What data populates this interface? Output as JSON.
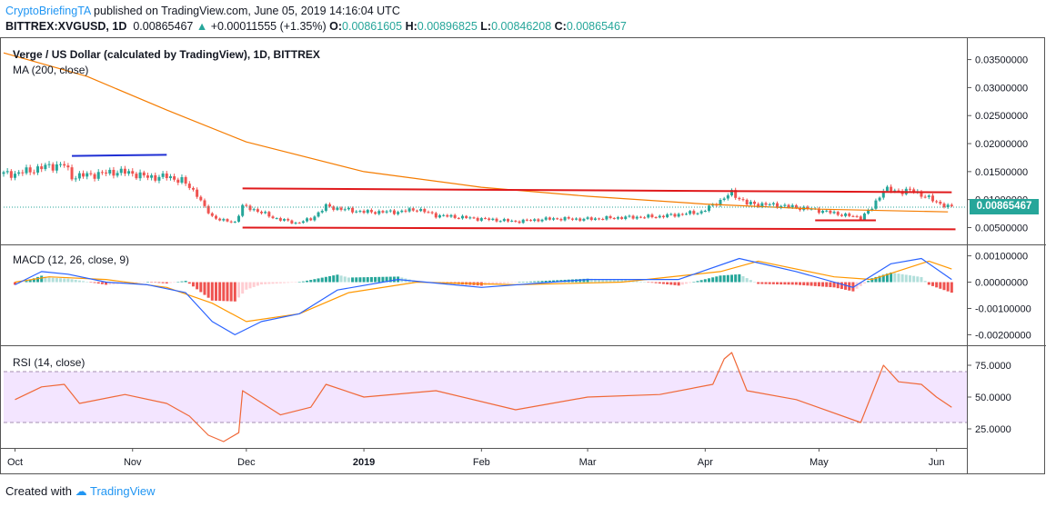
{
  "header": {
    "author": "CryptoBriefingTA",
    "published_text": "published on TradingView.com, June 05, 2019 14:16:04 UTC",
    "symbol": "BITTREX:XVGUSD, 1D",
    "last": "0.00865467",
    "change": "+0.00011555 (+1.35%)",
    "o_label": "O:",
    "o_value": "0.00861605",
    "h_label": "H:",
    "h_value": "0.00896825",
    "l_label": "L:",
    "l_value": "0.00846208",
    "c_label": "C:",
    "c_value": "0.00865467"
  },
  "footer": {
    "created_with": "Created with",
    "brand": "TradingView"
  },
  "price_tag": "0.00865467",
  "chart_data": [
    {
      "type": "candlestick",
      "title": "Verge / US Dollar (calculated by TradingView), 1D, BITTREX",
      "indicator_label": "MA (200, close)",
      "ylim": [
        0.002,
        0.0385
      ],
      "y_ticks": [
        "0.03500000",
        "0.03000000",
        "0.02500000",
        "0.02000000",
        "0.01500000",
        "0.01000000",
        "0.00500000"
      ],
      "y_tick_values": [
        0.035,
        0.03,
        0.025,
        0.02,
        0.015,
        0.01,
        0.005
      ],
      "x_ticks": [
        "Oct",
        "Nov",
        "Dec",
        "2019",
        "Feb",
        "Mar",
        "Apr",
        "May",
        "Jun"
      ],
      "x_tick_dates": [
        "2018-10-01",
        "2018-11-01",
        "2018-12-01",
        "2019-01-01",
        "2019-02-01",
        "2019-03-01",
        "2019-04-01",
        "2019-05-01",
        "2019-06-01"
      ],
      "price_close_points": [
        [
          "2018-10-01",
          0.0146
        ],
        [
          "2018-10-05",
          0.0152
        ],
        [
          "2018-10-10",
          0.016
        ],
        [
          "2018-10-14",
          0.0162
        ],
        [
          "2018-10-16",
          0.0141
        ],
        [
          "2018-10-22",
          0.0145
        ],
        [
          "2018-10-28",
          0.015
        ],
        [
          "2018-11-01",
          0.0147
        ],
        [
          "2018-11-05",
          0.014
        ],
        [
          "2018-11-10",
          0.0141
        ],
        [
          "2018-11-14",
          0.0134
        ],
        [
          "2018-11-18",
          0.011
        ],
        [
          "2018-11-20",
          0.0085
        ],
        [
          "2018-11-22",
          0.007
        ],
        [
          "2018-11-25",
          0.0062
        ],
        [
          "2018-11-28",
          0.006
        ],
        [
          "2018-11-30",
          0.0088
        ],
        [
          "2018-12-04",
          0.008
        ],
        [
          "2018-12-08",
          0.0068
        ],
        [
          "2018-12-14",
          0.0058
        ],
        [
          "2018-12-18",
          0.0065
        ],
        [
          "2018-12-22",
          0.0088
        ],
        [
          "2018-12-26",
          0.0083
        ],
        [
          "2019-01-01",
          0.0078
        ],
        [
          "2019-01-10",
          0.0078
        ],
        [
          "2019-01-15",
          0.0083
        ],
        [
          "2019-01-20",
          0.0072
        ],
        [
          "2019-01-31",
          0.0066
        ],
        [
          "2019-02-10",
          0.0061
        ],
        [
          "2019-02-20",
          0.0066
        ],
        [
          "2019-02-28",
          0.0065
        ],
        [
          "2019-03-10",
          0.0068
        ],
        [
          "2019-03-20",
          0.007
        ],
        [
          "2019-03-31",
          0.0078
        ],
        [
          "2019-04-05",
          0.0098
        ],
        [
          "2019-04-08",
          0.0112
        ],
        [
          "2019-04-12",
          0.0093
        ],
        [
          "2019-04-20",
          0.009
        ],
        [
          "2019-04-30",
          0.0082
        ],
        [
          "2019-05-08",
          0.0072
        ],
        [
          "2019-05-12",
          0.0068
        ],
        [
          "2019-05-15",
          0.0085
        ],
        [
          "2019-05-18",
          0.0118
        ],
        [
          "2019-05-22",
          0.0115
        ],
        [
          "2019-05-26",
          0.0116
        ],
        [
          "2019-05-30",
          0.0102
        ],
        [
          "2019-06-04",
          0.0087
        ]
      ],
      "ma200_points": [
        [
          "2018-09-28",
          0.0362
        ],
        [
          "2018-10-20",
          0.032
        ],
        [
          "2018-11-10",
          0.026
        ],
        [
          "2018-12-01",
          0.0203
        ],
        [
          "2019-01-01",
          0.015
        ],
        [
          "2019-02-01",
          0.0122
        ],
        [
          "2019-03-01",
          0.0106
        ],
        [
          "2019-04-01",
          0.0092
        ],
        [
          "2019-05-01",
          0.0083
        ],
        [
          "2019-06-04",
          0.0078
        ]
      ],
      "annotations": {
        "blue_line": {
          "from": [
            "2018-10-16",
            0.0178
          ],
          "to": [
            "2018-11-10",
            0.018
          ]
        },
        "red_channel_top": {
          "from": [
            "2018-11-30",
            0.012
          ],
          "to": [
            "2019-06-05",
            0.0113
          ]
        },
        "red_channel_bottom": {
          "from": [
            "2018-11-30",
            0.005
          ],
          "to": [
            "2019-06-06",
            0.0047
          ]
        },
        "red_short": {
          "from": [
            "2019-04-30",
            0.0063
          ],
          "to": [
            "2019-05-16",
            0.0063
          ]
        }
      }
    },
    {
      "type": "macd",
      "indicator_label": "MACD (12, 26, close, 9)",
      "ylim": [
        -0.0024,
        0.0014
      ],
      "y_ticks": [
        "0.00100000",
        "0.00000000",
        "-0.00100000",
        "-0.00200000"
      ],
      "y_tick_values": [
        0.001,
        0.0,
        -0.001,
        -0.002
      ],
      "macd_points": [
        [
          "2018-10-01",
          -0.0001
        ],
        [
          "2018-10-08",
          0.0004
        ],
        [
          "2018-10-15",
          0.0003
        ],
        [
          "2018-10-25",
          0.0
        ],
        [
          "2018-11-05",
          -0.0001
        ],
        [
          "2018-11-15",
          -0.0004
        ],
        [
          "2018-11-22",
          -0.0015
        ],
        [
          "2018-11-28",
          -0.002
        ],
        [
          "2018-12-05",
          -0.0015
        ],
        [
          "2018-12-15",
          -0.0012
        ],
        [
          "2018-12-25",
          -0.0003
        ],
        [
          "2019-01-10",
          0.0001
        ],
        [
          "2019-02-01",
          -0.0002
        ],
        [
          "2019-03-01",
          0.0001
        ],
        [
          "2019-03-25",
          0.0001
        ],
        [
          "2019-04-10",
          0.0009
        ],
        [
          "2019-04-25",
          0.0004
        ],
        [
          "2019-05-10",
          -0.0002
        ],
        [
          "2019-05-20",
          0.0007
        ],
        [
          "2019-05-28",
          0.0009
        ],
        [
          "2019-06-05",
          0.0001
        ]
      ],
      "signal_points": [
        [
          "2018-10-01",
          0.0
        ],
        [
          "2018-10-10",
          0.0002
        ],
        [
          "2018-10-25",
          0.0001
        ],
        [
          "2018-11-10",
          -0.0002
        ],
        [
          "2018-11-22",
          -0.0008
        ],
        [
          "2018-12-01",
          -0.0015
        ],
        [
          "2018-12-15",
          -0.0012
        ],
        [
          "2018-12-28",
          -0.0004
        ],
        [
          "2019-01-15",
          0.0
        ],
        [
          "2019-02-10",
          -0.0001
        ],
        [
          "2019-03-10",
          0.0
        ],
        [
          "2019-04-05",
          0.0004
        ],
        [
          "2019-04-15",
          0.0008
        ],
        [
          "2019-05-05",
          0.0002
        ],
        [
          "2019-05-15",
          0.0001
        ],
        [
          "2019-05-30",
          0.0008
        ],
        [
          "2019-06-05",
          0.0005
        ]
      ]
    },
    {
      "type": "rsi",
      "indicator_label": "RSI (14, close)",
      "ylim": [
        10,
        90
      ],
      "y_ticks": [
        "75.0000",
        "50.0000",
        "25.0000"
      ],
      "y_tick_values": [
        75,
        50,
        25
      ],
      "band": [
        30,
        70
      ],
      "rsi_points": [
        [
          "2018-10-01",
          48
        ],
        [
          "2018-10-08",
          58
        ],
        [
          "2018-10-14",
          60
        ],
        [
          "2018-10-18",
          45
        ],
        [
          "2018-10-30",
          52
        ],
        [
          "2018-11-10",
          45
        ],
        [
          "2018-11-16",
          35
        ],
        [
          "2018-11-21",
          20
        ],
        [
          "2018-11-25",
          15
        ],
        [
          "2018-11-29",
          22
        ],
        [
          "2018-11-30",
          55
        ],
        [
          "2018-12-10",
          36
        ],
        [
          "2018-12-18",
          42
        ],
        [
          "2018-12-22",
          60
        ],
        [
          "2019-01-01",
          50
        ],
        [
          "2019-01-20",
          55
        ],
        [
          "2019-02-10",
          40
        ],
        [
          "2019-03-01",
          50
        ],
        [
          "2019-03-20",
          52
        ],
        [
          "2019-04-03",
          60
        ],
        [
          "2019-04-06",
          80
        ],
        [
          "2019-04-08",
          85
        ],
        [
          "2019-04-12",
          55
        ],
        [
          "2019-04-25",
          48
        ],
        [
          "2019-05-12",
          30
        ],
        [
          "2019-05-16",
          60
        ],
        [
          "2019-05-18",
          75
        ],
        [
          "2019-05-22",
          62
        ],
        [
          "2019-05-28",
          60
        ],
        [
          "2019-06-01",
          50
        ],
        [
          "2019-06-05",
          42
        ]
      ]
    }
  ]
}
